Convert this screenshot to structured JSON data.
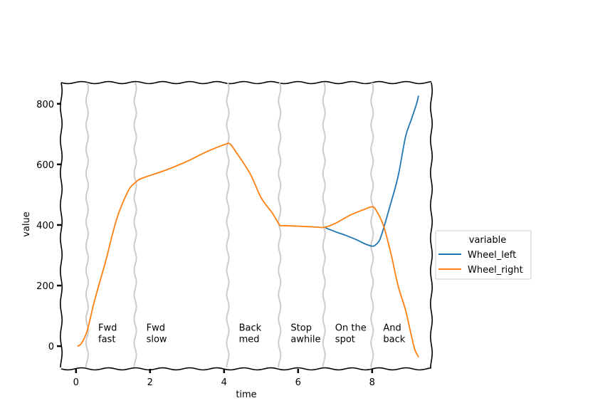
{
  "chart_data": {
    "type": "line",
    "title": "",
    "xlabel": "time",
    "ylabel": "value",
    "xlim": [
      -0.4,
      9.6
    ],
    "ylim": [
      -75,
      870
    ],
    "xticks": [
      0,
      2,
      4,
      6,
      8
    ],
    "yticks": [
      0,
      200,
      400,
      600,
      800
    ],
    "grid": false,
    "vlines": [
      0.3,
      1.6,
      4.1,
      5.5,
      6.7,
      8.0
    ],
    "annotations": [
      {
        "x": 0.6,
        "y": 15,
        "line1": "Fwd",
        "line2": "fast"
      },
      {
        "x": 1.9,
        "y": 15,
        "line1": "Fwd",
        "line2": "slow"
      },
      {
        "x": 4.4,
        "y": 15,
        "line1": "Back",
        "line2": "med"
      },
      {
        "x": 5.8,
        "y": 15,
        "line1": "Stop",
        "line2": "awhile"
      },
      {
        "x": 7.0,
        "y": 15,
        "line1": "On the",
        "line2": "spot"
      },
      {
        "x": 8.3,
        "y": 15,
        "line1": "And",
        "line2": "back"
      }
    ],
    "legend": {
      "title": "variable",
      "placement": "center-right-outside"
    },
    "series": [
      {
        "name": "Wheel_left",
        "color": "#1f77b4",
        "x": [
          6.75,
          7.0,
          7.3,
          7.6,
          7.8,
          8.0,
          8.1,
          8.2,
          8.3,
          8.5,
          8.7,
          8.9,
          9.05,
          9.2,
          9.25
        ],
        "y": [
          390,
          378,
          365,
          350,
          338,
          330,
          335,
          350,
          385,
          470,
          560,
          690,
          745,
          800,
          825
        ]
      },
      {
        "name": "Wheel_right",
        "color": "#ff7f0e",
        "x": [
          0.05,
          0.15,
          0.3,
          0.5,
          0.8,
          1.1,
          1.4,
          1.6,
          1.8,
          2.4,
          3.0,
          3.5,
          4.0,
          4.15,
          4.3,
          4.7,
          5.0,
          5.3,
          5.5,
          5.6,
          6.0,
          6.5,
          6.7,
          7.0,
          7.4,
          7.8,
          8.0,
          8.1,
          8.3,
          8.5,
          8.7,
          8.9,
          9.05,
          9.15,
          9.25
        ],
        "y": [
          0,
          10,
          50,
          150,
          280,
          420,
          510,
          540,
          555,
          580,
          610,
          640,
          665,
          668,
          645,
          570,
          490,
          440,
          400,
          398,
          396,
          393,
          392,
          405,
          432,
          452,
          460,
          450,
          400,
          310,
          200,
          120,
          40,
          -10,
          -35
        ]
      }
    ]
  }
}
